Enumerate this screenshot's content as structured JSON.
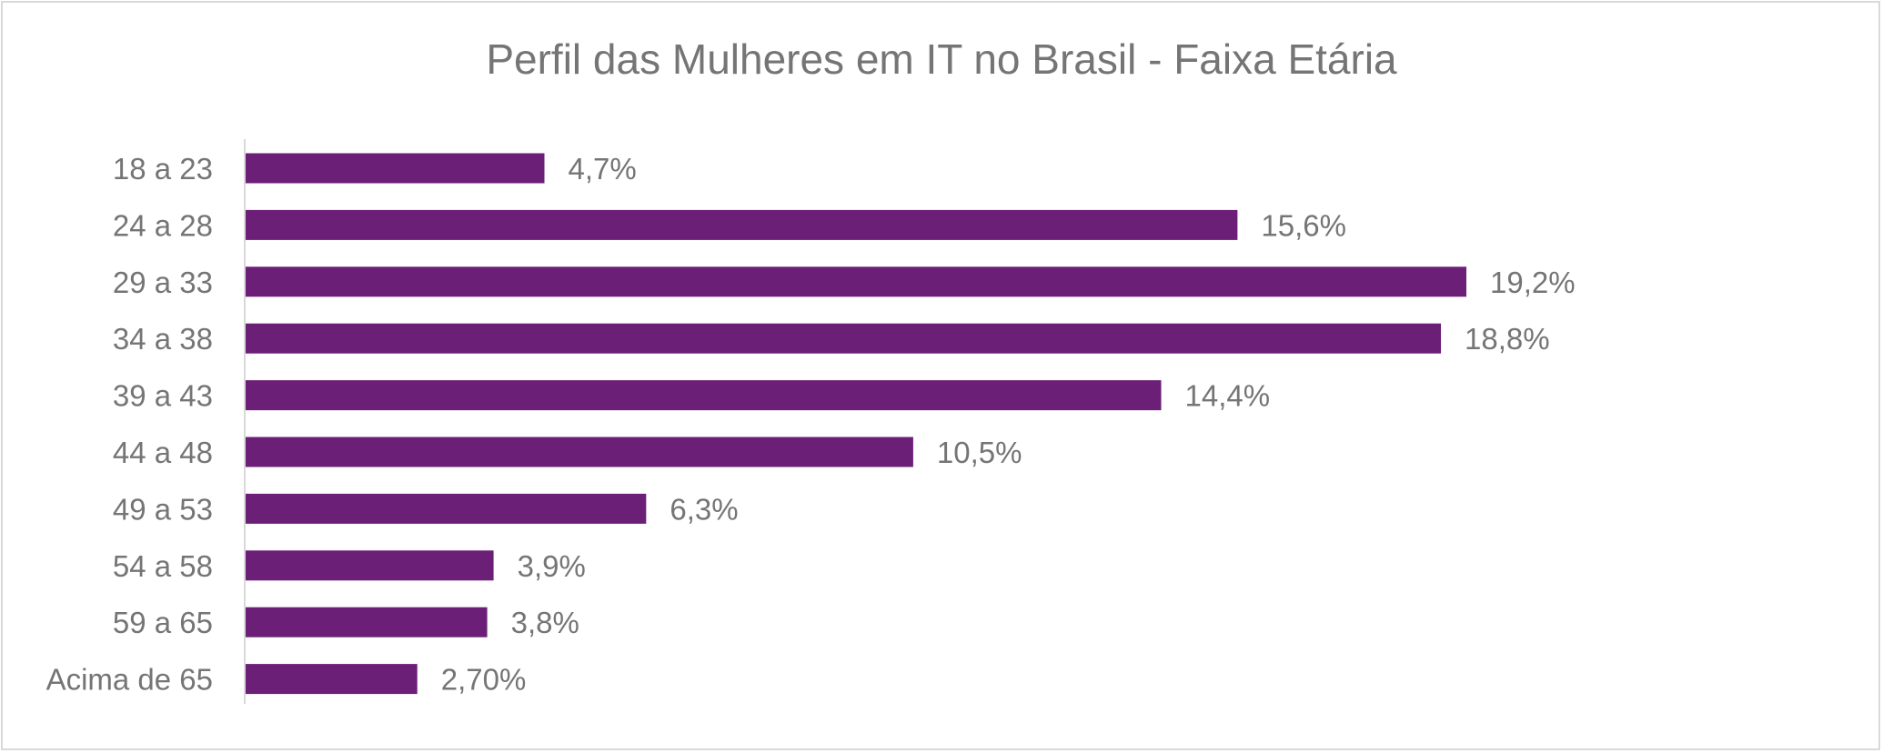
{
  "chart_data": {
    "type": "bar",
    "orientation": "horizontal",
    "title": "Perfil das Mulheres em IT no Brasil - Faixa Etária",
    "categories": [
      "18 a 23",
      "24 a 28",
      "29 a 33",
      "34 a 38",
      "39 a 43",
      "44 a 48",
      "49 a 53",
      "54 a 58",
      "59 a 65",
      "Acima de 65"
    ],
    "values": [
      4.7,
      15.6,
      19.2,
      18.8,
      14.4,
      10.5,
      6.3,
      3.9,
      3.8,
      2.7
    ],
    "labels": [
      "4,7%",
      "15,6%",
      "19,2%",
      "18,8%",
      "14,4%",
      "10,5%",
      "6,3%",
      "3,9%",
      "3,8%",
      "2,70%"
    ],
    "xlim": [
      0,
      19.2
    ],
    "grid": false,
    "legend": "none",
    "bar_color": "#6B1F77",
    "axis_color": "#d9d9d9"
  }
}
